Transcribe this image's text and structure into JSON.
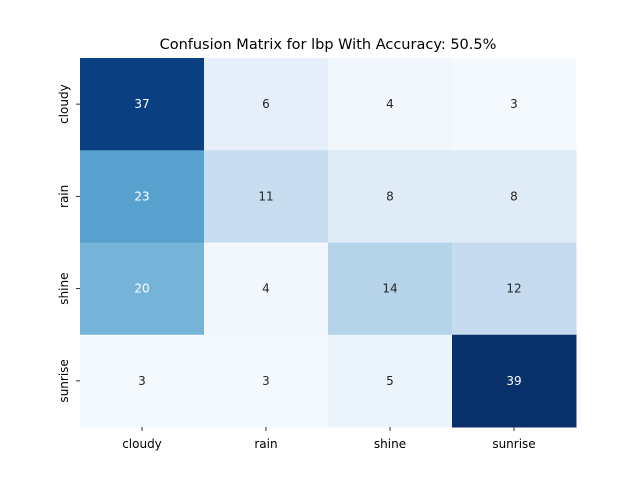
{
  "chart_data": {
    "type": "heatmap",
    "title": "Confusion Matrix for lbp With Accuracy: 50.5%",
    "xlabel": "",
    "ylabel": "",
    "x_categories": [
      "cloudy",
      "rain",
      "shine",
      "sunrise"
    ],
    "y_categories": [
      "cloudy",
      "rain",
      "shine",
      "sunrise"
    ],
    "values": [
      [
        37,
        6,
        4,
        3
      ],
      [
        23,
        11,
        8,
        8
      ],
      [
        20,
        4,
        14,
        12
      ],
      [
        3,
        3,
        5,
        39
      ]
    ],
    "colormap": "Blues",
    "colorbar": false,
    "grid": false,
    "cell_colors": [
      [
        "#0a3f82",
        "#e6eff9",
        "#f1f7fd",
        "#f4f9fe"
      ],
      [
        "#58a1cf",
        "#c9ddf0",
        "#dfebf7",
        "#dfebf7"
      ],
      [
        "#75b4d8",
        "#f1f7fd",
        "#b5d4e9",
        "#c6dbef"
      ],
      [
        "#f4f9fe",
        "#f4f9fe",
        "#ecf4fb",
        "#08306b"
      ]
    ],
    "text_colors": [
      [
        "#ffffff",
        "#262626",
        "#262626",
        "#262626"
      ],
      [
        "#ffffff",
        "#262626",
        "#262626",
        "#262626"
      ],
      [
        "#ffffff",
        "#262626",
        "#262626",
        "#262626"
      ],
      [
        "#262626",
        "#262626",
        "#262626",
        "#ffffff"
      ]
    ]
  }
}
